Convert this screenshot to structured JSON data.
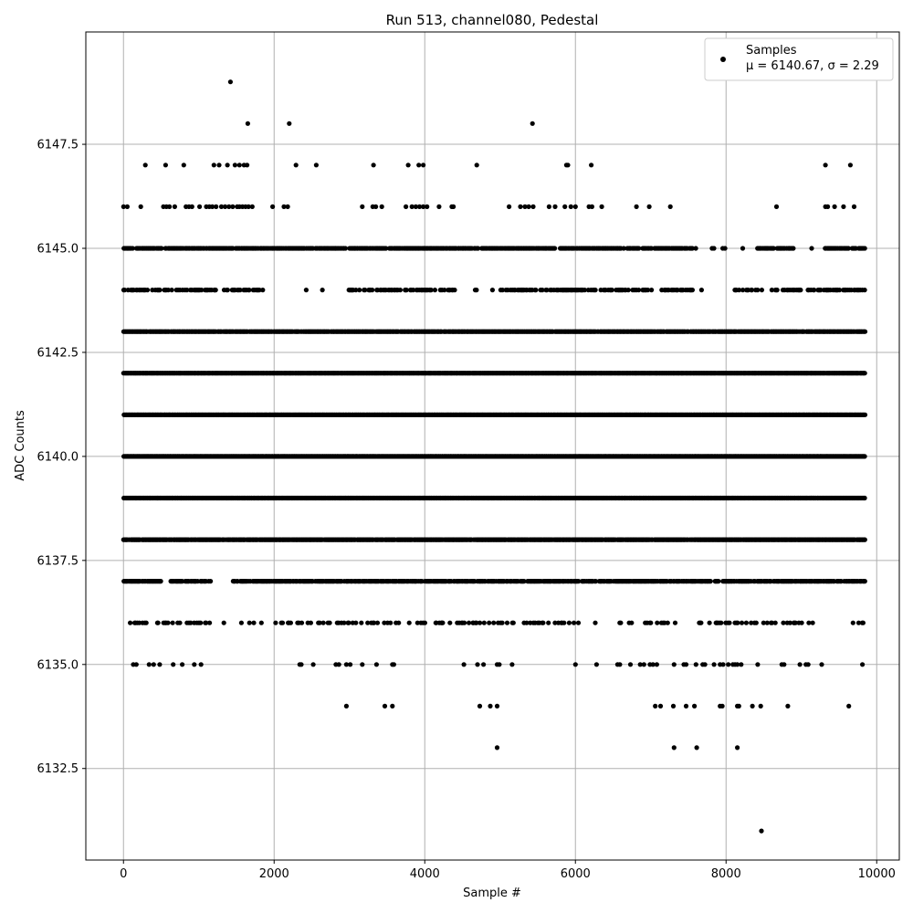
{
  "chart_data": {
    "type": "scatter",
    "title": "Run 513, channel080, Pedestal",
    "xlabel": "Sample #",
    "ylabel": "ADC Counts",
    "xlim": [
      -500,
      10300
    ],
    "ylim": [
      6130.3,
      6150.2
    ],
    "x_ticks": [
      0,
      2000,
      4000,
      6000,
      8000,
      10000
    ],
    "x_tick_labels": [
      "0",
      "2000",
      "4000",
      "6000",
      "8000",
      "10000"
    ],
    "y_ticks": [
      6132.5,
      6135.0,
      6137.5,
      6140.0,
      6142.5,
      6145.0,
      6147.5
    ],
    "y_tick_labels": [
      "6132.5",
      "6135.0",
      "6137.5",
      "6140.0",
      "6142.5",
      "6145.0",
      "6147.5"
    ],
    "grid": true,
    "legend": {
      "placement": "top-right",
      "entry": "Samples",
      "stats": "μ = 6140.67, σ = 2.29"
    },
    "marker_color": "#000000",
    "series": [
      {
        "name": "Samples",
        "x_range": [
          0,
          9850
        ],
        "levels": [
          {
            "y": 6149,
            "x": [
              1420
            ]
          },
          {
            "y": 6148,
            "x": [
              1650,
              2200,
              5430
            ]
          },
          {
            "y": 6147,
            "x": [
              290,
              560,
              800,
              1200,
              1270,
              1380,
              1480,
              1540,
              1600,
              1640,
              2290,
              2560,
              3320,
              3780,
              3920,
              3980,
              4690,
              5880,
              5900,
              6210,
              9320,
              9650
            ]
          },
          {
            "y": 6146,
            "x": [
              0,
              50,
              230,
              530,
              570,
              610,
              680,
              830,
              870,
              910,
              1010,
              1100,
              1140,
              1180,
              1230,
              1300,
              1350,
              1400,
              1450,
              1510,
              1540,
              1580,
              1620,
              1660,
              1710,
              1980,
              2130,
              2180,
              3170,
              3310,
              3350,
              3430,
              3750,
              3830,
              3880,
              3930,
              3980,
              4030,
              4190,
              4360,
              4380,
              5120,
              5270,
              5330,
              5380,
              5440,
              5650,
              5730,
              5860,
              5940,
              6000,
              6180,
              6220,
              6350,
              6810,
              6980,
              7260,
              8670,
              9320,
              9350,
              9440,
              9560,
              9700
            ]
          }
        ],
        "dense_levels": [
          {
            "y": 6145,
            "x_from": 0,
            "x_to": 9850,
            "density": 0.8,
            "gaps": [
              [
                7560,
                8400
              ],
              [
                8900,
                9300
              ]
            ]
          },
          {
            "y": 6144,
            "x_from": 0,
            "x_to": 9850,
            "density": 0.5,
            "gaps": [
              [
                1900,
                2980
              ],
              [
                4420,
                5000
              ],
              [
                7560,
                8100
              ],
              [
                8500,
                8650
              ]
            ]
          },
          {
            "y": 6143,
            "x_from": 0,
            "x_to": 9850,
            "density": 0.95,
            "gaps": []
          },
          {
            "y": 6142,
            "x_from": 0,
            "x_to": 9850,
            "density": 1.0,
            "gaps": []
          },
          {
            "y": 6141,
            "x_from": 0,
            "x_to": 9850,
            "density": 1.0,
            "gaps": []
          },
          {
            "y": 6140,
            "x_from": 0,
            "x_to": 9850,
            "density": 1.0,
            "gaps": []
          },
          {
            "y": 6139,
            "x_from": 0,
            "x_to": 9850,
            "density": 1.0,
            "gaps": []
          },
          {
            "y": 6138,
            "x_from": 0,
            "x_to": 9850,
            "density": 0.95,
            "gaps": []
          },
          {
            "y": 6137,
            "x_from": 0,
            "x_to": 9850,
            "density": 0.8,
            "gaps": [
              [
                500,
                620
              ],
              [
                1100,
                1450
              ]
            ]
          },
          {
            "y": 6136,
            "x_from": 0,
            "x_to": 9850,
            "density": 0.25,
            "gaps": [
              [
                1150,
                1950
              ],
              [
                6000,
                6550
              ]
            ]
          }
        ],
        "sparse_levels": [
          {
            "y": 6135,
            "x": [
              130,
              170,
              340,
              400,
              480,
              660,
              780,
              940,
              1030,
              2340,
              2360,
              2520,
              2820,
              2860,
              2960,
              3010,
              3170,
              3360,
              3570,
              3590,
              4520,
              4700,
              4780,
              4960,
              4990,
              5160,
              6000,
              6280,
              6560,
              6590,
              6730,
              6860,
              6910,
              6990,
              7030,
              7080,
              7310,
              7440,
              7470,
              7600,
              7690,
              7720,
              7840,
              7920,
              7960,
              8030,
              8090,
              8120,
              8150,
              8200,
              8420,
              8740,
              8770,
              8980,
              9060,
              9090,
              9270,
              9810
            ]
          },
          {
            "y": 6134,
            "x": [
              2960,
              3470,
              3570,
              4730,
              4870,
              4960,
              7060,
              7130,
              7300,
              7470,
              7580,
              7920,
              7950,
              8150,
              8170,
              8350,
              8460,
              8820,
              9630
            ]
          },
          {
            "y": 6133,
            "x": [
              4960,
              7310,
              7610,
              8150
            ]
          },
          {
            "y": 6131,
            "x": [
              8470
            ]
          }
        ]
      }
    ]
  }
}
